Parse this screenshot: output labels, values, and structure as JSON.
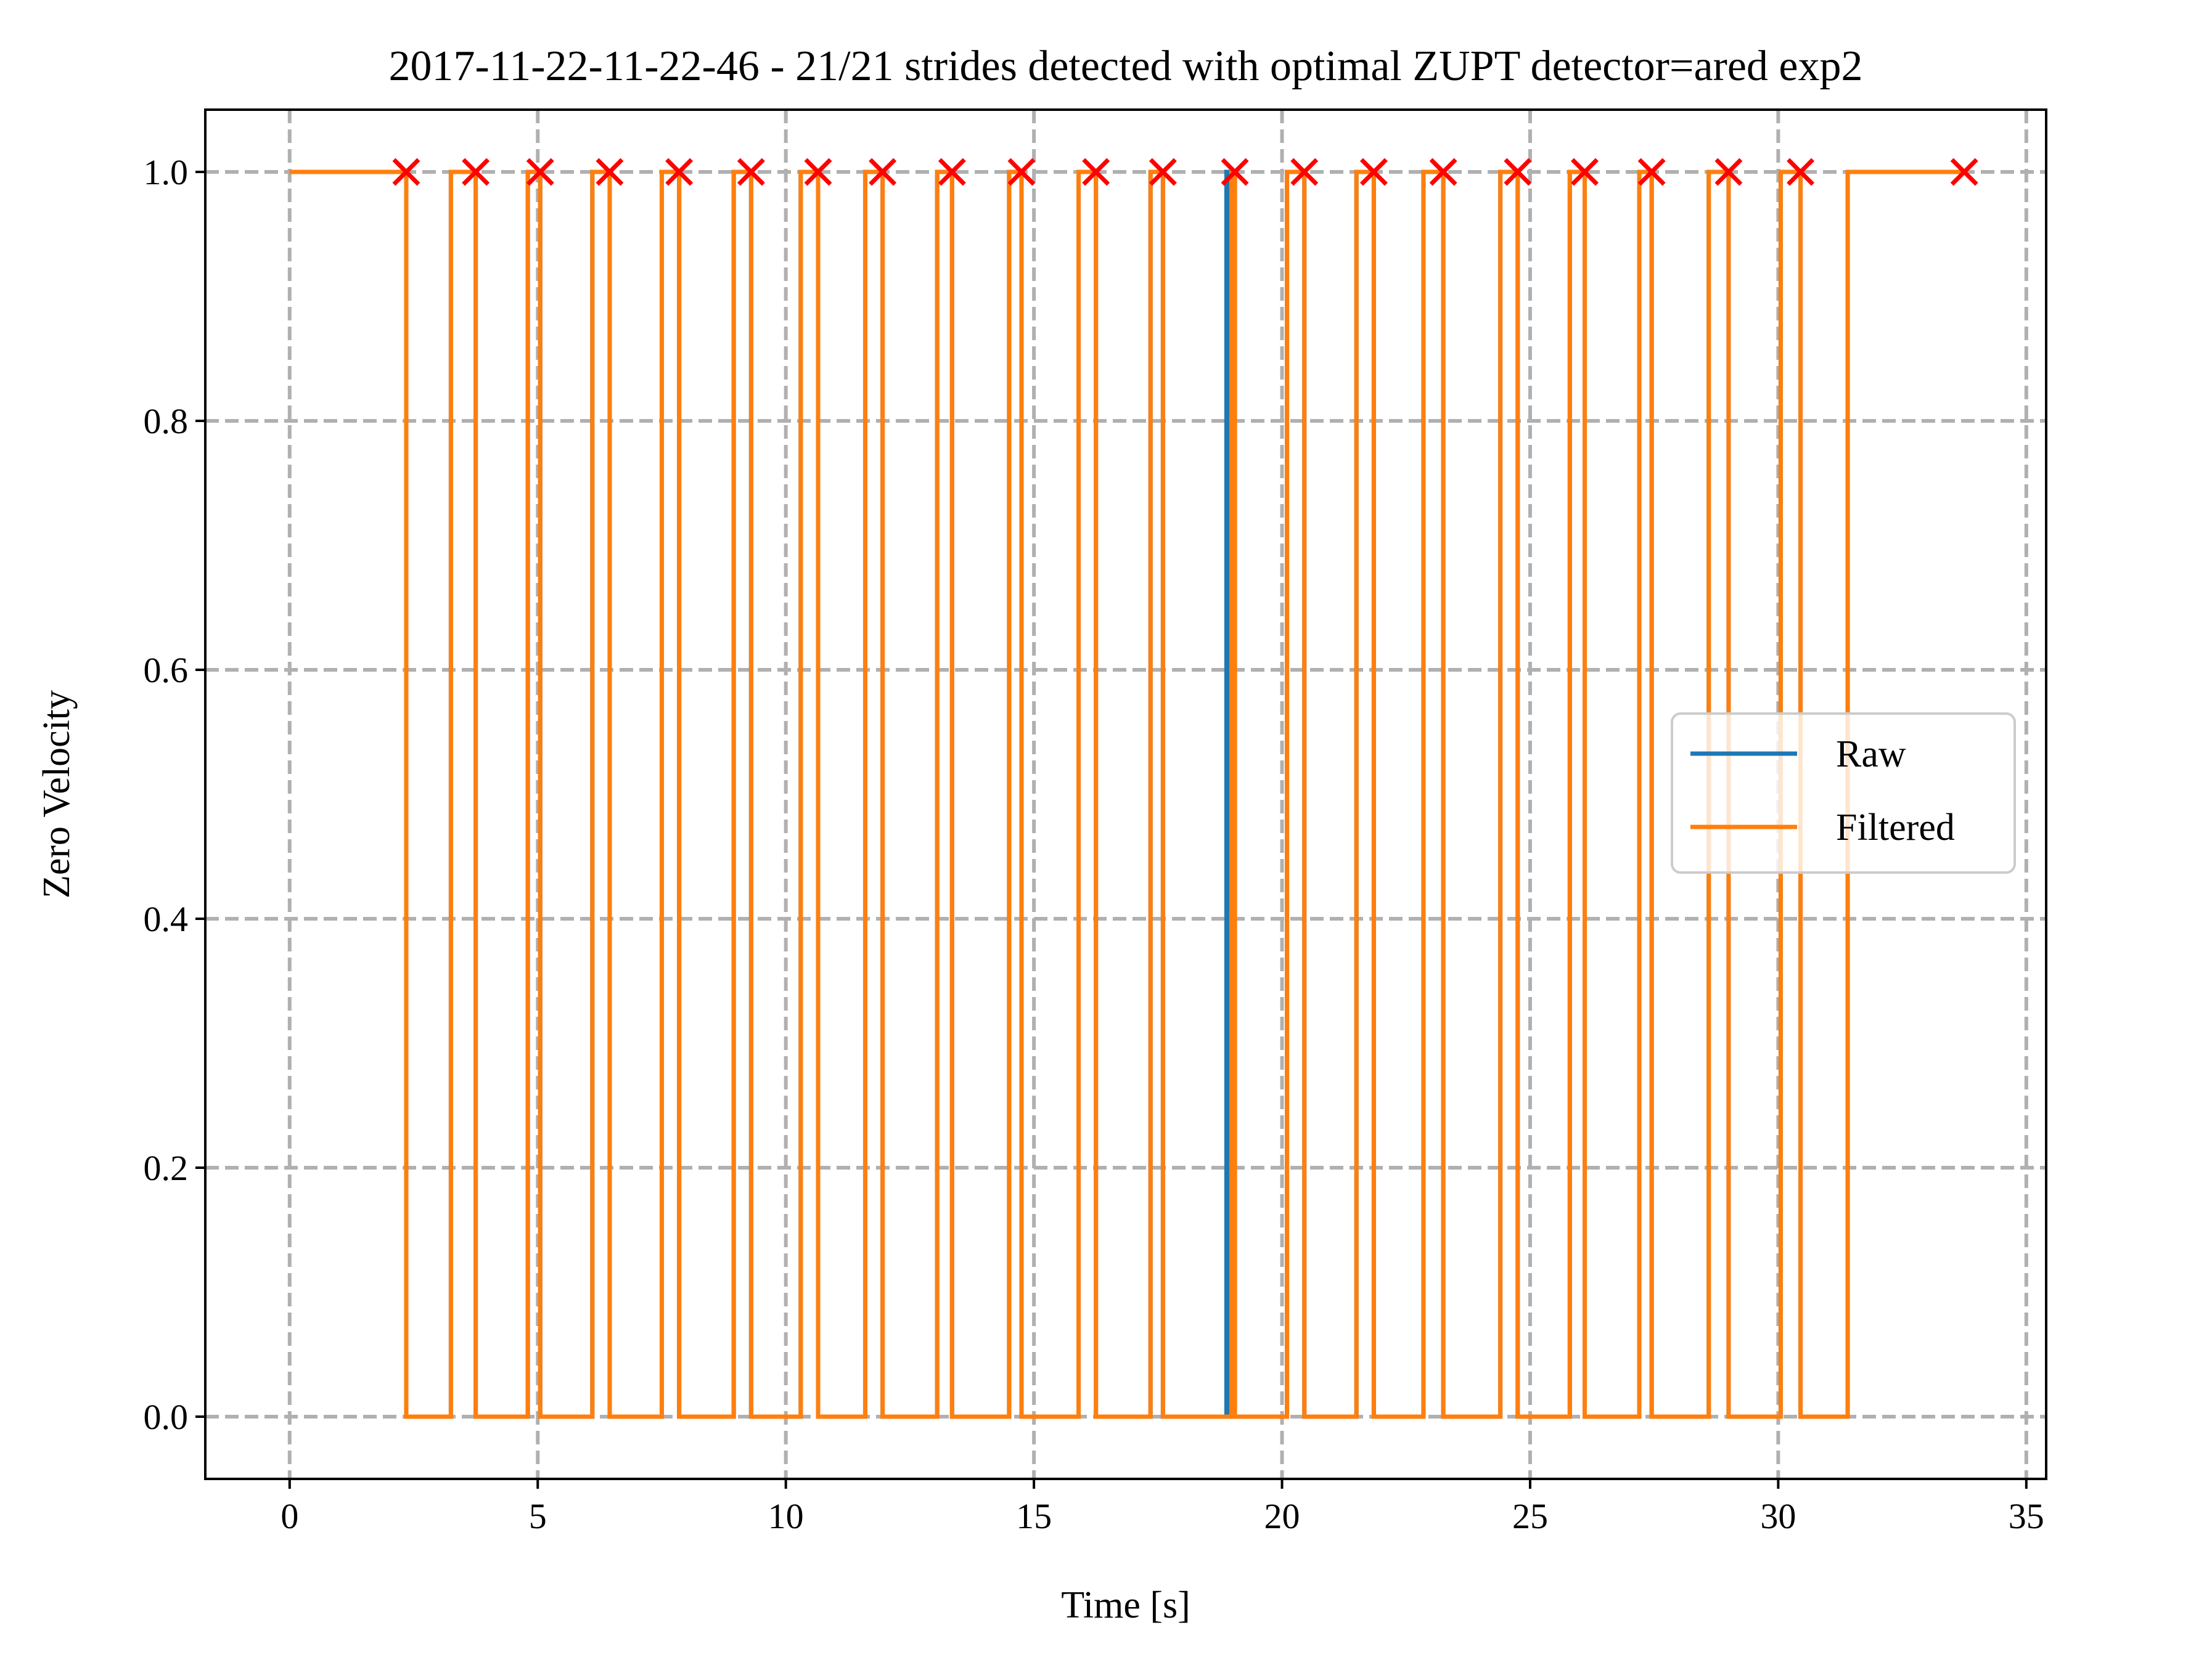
{
  "chart_data": {
    "type": "line",
    "title": "2017-11-22-11-22-46 - 21/21 strides detected with optimal ZUPT detector=ared exp2",
    "xlabel": "Time [s]",
    "ylabel": "Zero Velocity",
    "xlim": [
      -1.7,
      35.4
    ],
    "ylim": [
      -0.05,
      1.05
    ],
    "xticks": [
      0,
      5,
      10,
      15,
      20,
      25,
      30,
      35
    ],
    "xtick_labels": [
      "0",
      "5",
      "10",
      "15",
      "20",
      "25",
      "30",
      "35"
    ],
    "yticks": [
      0.0,
      0.2,
      0.4,
      0.6,
      0.8,
      1.0
    ],
    "ytick_labels": [
      "0.0",
      "0.2",
      "0.4",
      "0.6",
      "0.8",
      "1.0"
    ],
    "grid": true,
    "legend": {
      "placement": "center-right",
      "entries": [
        "Raw",
        "Filtered"
      ]
    },
    "colors": {
      "raw": "#1f77b4",
      "filtered": "#ff7f0e",
      "markers": "#ff0000",
      "grid": "#b0b0b0"
    },
    "series": [
      {
        "name": "Raw",
        "step_ones": [
          [
            0.0,
            2.35
          ],
          [
            3.25,
            3.75
          ],
          [
            4.8,
            5.05
          ],
          [
            6.1,
            6.45
          ],
          [
            7.5,
            7.85
          ],
          [
            8.95,
            9.3
          ],
          [
            10.3,
            10.65
          ],
          [
            11.6,
            11.95
          ],
          [
            13.05,
            13.35
          ],
          [
            14.5,
            14.75
          ],
          [
            15.9,
            16.25
          ],
          [
            17.35,
            17.6
          ],
          [
            18.88,
            18.9
          ],
          [
            18.98,
            19.05
          ],
          [
            20.1,
            20.45
          ],
          [
            21.5,
            21.85
          ],
          [
            22.85,
            23.25
          ],
          [
            24.4,
            24.75
          ],
          [
            25.8,
            26.1
          ],
          [
            27.2,
            27.45
          ],
          [
            28.6,
            29.0
          ],
          [
            30.05,
            30.45
          ],
          [
            31.4,
            33.75
          ]
        ]
      },
      {
        "name": "Filtered",
        "step_ones": [
          [
            0.0,
            2.35
          ],
          [
            3.25,
            3.75
          ],
          [
            4.8,
            5.05
          ],
          [
            6.1,
            6.45
          ],
          [
            7.5,
            7.85
          ],
          [
            8.95,
            9.3
          ],
          [
            10.3,
            10.65
          ],
          [
            11.6,
            11.95
          ],
          [
            13.05,
            13.35
          ],
          [
            14.5,
            14.75
          ],
          [
            15.9,
            16.25
          ],
          [
            17.35,
            17.6
          ],
          [
            18.98,
            19.05
          ],
          [
            20.1,
            20.45
          ],
          [
            21.5,
            21.85
          ],
          [
            22.85,
            23.25
          ],
          [
            24.4,
            24.75
          ],
          [
            25.8,
            26.1
          ],
          [
            27.2,
            27.45
          ],
          [
            28.6,
            29.0
          ],
          [
            30.05,
            30.45
          ],
          [
            31.4,
            33.75
          ]
        ]
      }
    ],
    "stride_markers": {
      "y": 1.0,
      "x": [
        2.35,
        3.75,
        5.05,
        6.45,
        7.85,
        9.3,
        10.65,
        11.95,
        13.35,
        14.75,
        16.25,
        17.6,
        19.05,
        20.45,
        21.85,
        23.25,
        24.75,
        26.1,
        27.45,
        29.0,
        30.45,
        33.75
      ]
    }
  }
}
